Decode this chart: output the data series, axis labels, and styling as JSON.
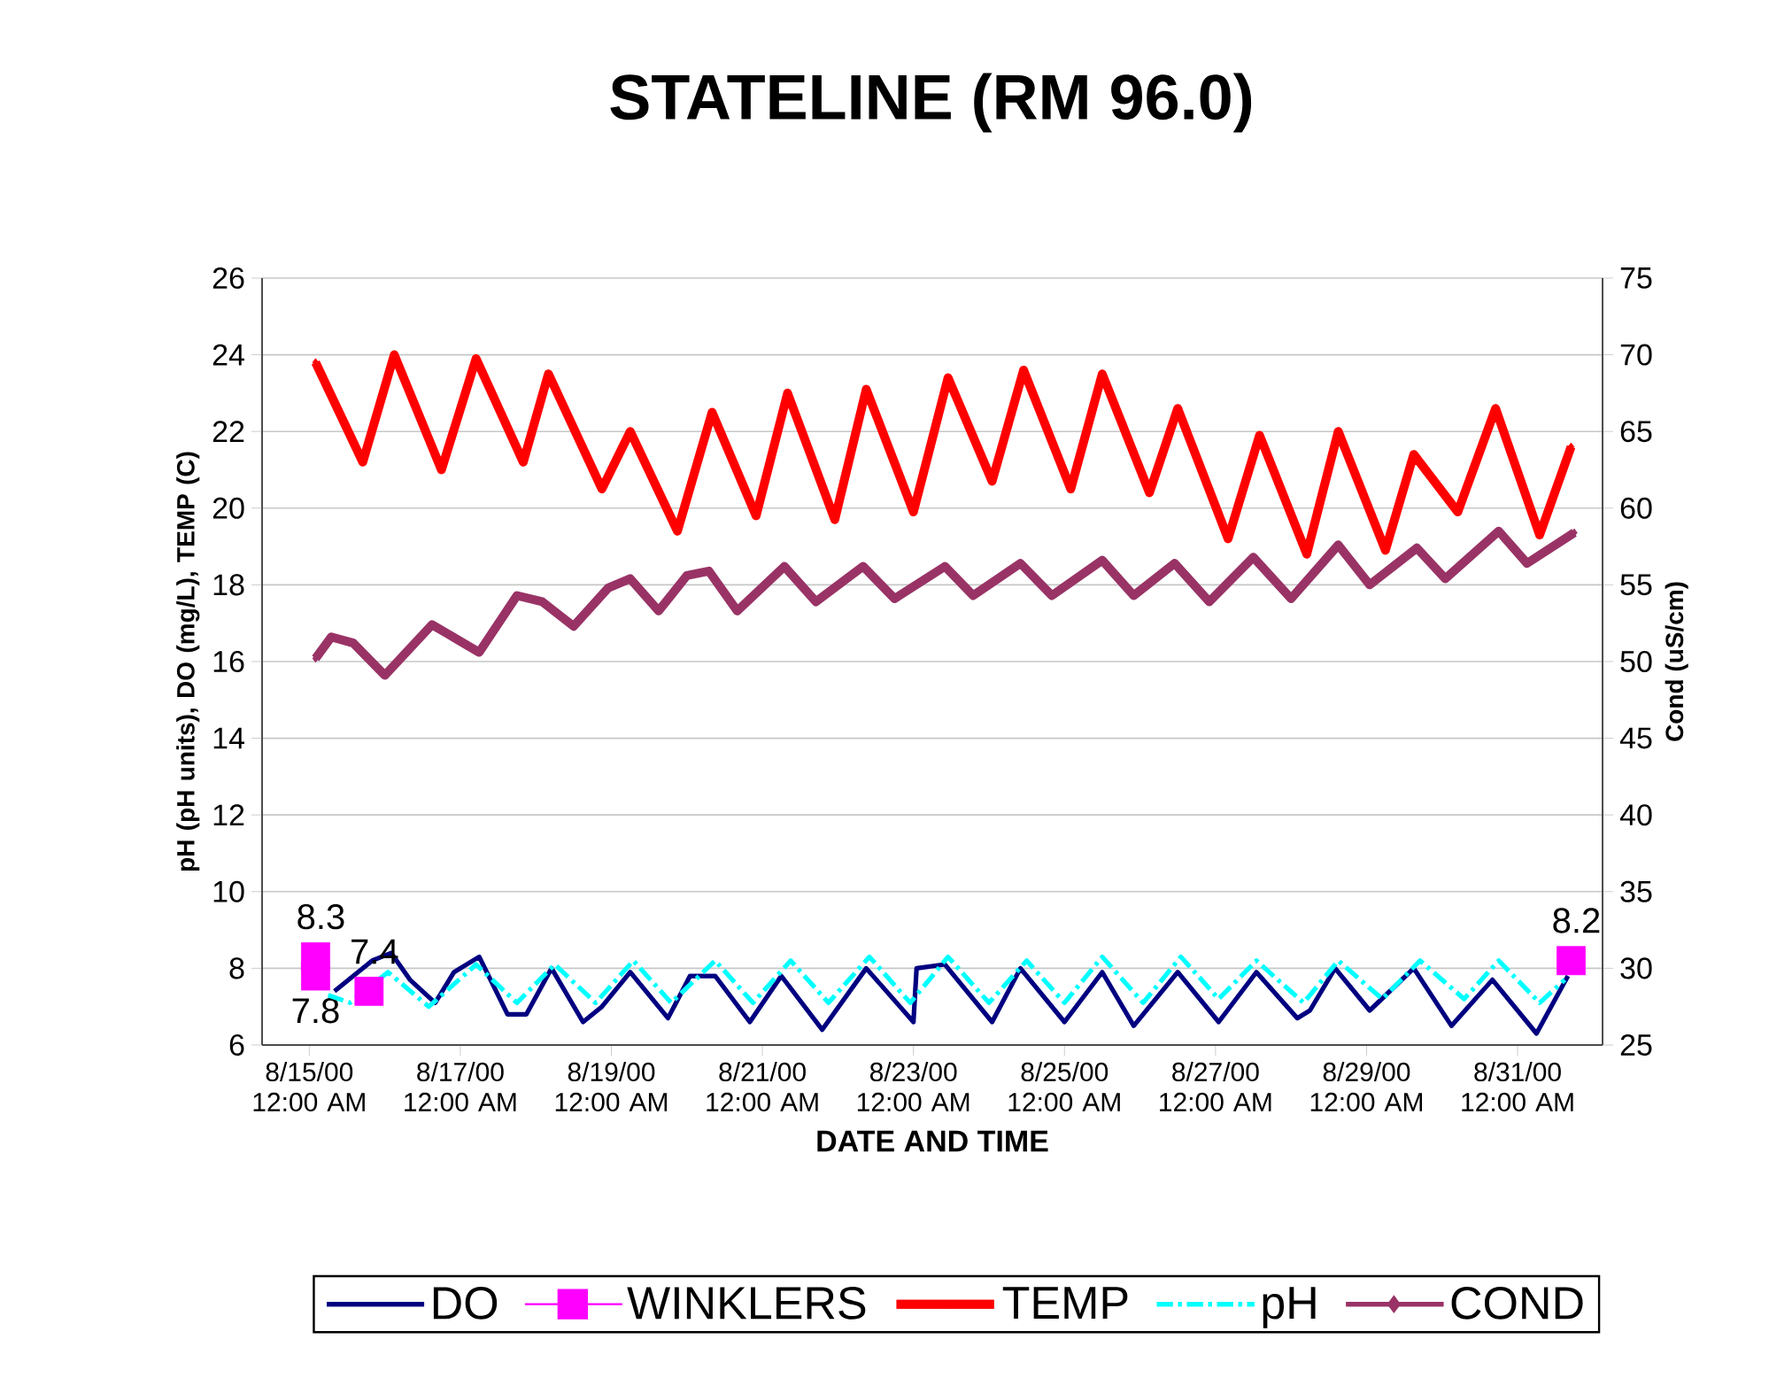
{
  "chart_data": {
    "type": "line",
    "title": "STATELINE (RM 96.0)",
    "xlabel": "DATE AND TIME",
    "ylabel": "pH (pH units), DO (mg/L), TEMP (C)",
    "y2label": "Cond (uS/cm)",
    "xlim": [
      "2000-08-14T09:00",
      "2000-09-01T03:00"
    ],
    "xticks": [
      {
        "value": "2000-08-15T00:00",
        "label": "8/15/00 12:00 AM"
      },
      {
        "value": "2000-08-17T00:00",
        "label": "8/17/00 12:00 AM"
      },
      {
        "value": "2000-08-19T00:00",
        "label": "8/19/00 12:00 AM"
      },
      {
        "value": "2000-08-21T00:00",
        "label": "8/21/00 12:00 AM"
      },
      {
        "value": "2000-08-23T00:00",
        "label": "8/23/00 12:00 AM"
      },
      {
        "value": "2000-08-25T00:00",
        "label": "8/25/00 12:00 AM"
      },
      {
        "value": "2000-08-27T00:00",
        "label": "8/27/00 12:00 AM"
      },
      {
        "value": "2000-08-29T00:00",
        "label": "8/29/00 12:00 AM"
      },
      {
        "value": "2000-08-31T00:00",
        "label": "8/31/00 12:00 AM"
      }
    ],
    "ylim": [
      6,
      26
    ],
    "yticks": [
      6,
      8,
      10,
      12,
      14,
      16,
      18,
      20,
      22,
      24,
      26
    ],
    "y2lim": [
      25,
      75
    ],
    "y2ticks": [
      25,
      30,
      35,
      40,
      45,
      50,
      55,
      60,
      65,
      70,
      75
    ],
    "grid": "y",
    "legend": "bottom",
    "series": [
      {
        "name": "DO",
        "color": "#000080",
        "marker": "none",
        "line_style": "solid",
        "x": [
          "2000-08-15T08:00",
          "2000-08-15T17:00",
          "2000-08-15T20:00",
          "2000-08-16T02:00",
          "2000-08-16T08:00",
          "2000-08-16T16:00",
          "2000-08-16T22:00",
          "2000-08-17T06:00",
          "2000-08-17T15:00",
          "2000-08-17T21:00",
          "2000-08-18T05:00",
          "2000-08-18T15:00",
          "2000-08-18T21:00",
          "2000-08-19T06:00",
          "2000-08-19T18:00",
          "2000-08-20T01:00",
          "2000-08-20T09:00",
          "2000-08-20T20:00",
          "2000-08-21T06:00",
          "2000-08-21T19:00",
          "2000-08-22T09:00",
          "2000-08-23T00:00",
          "2000-08-23T01:00",
          "2000-08-23T10:00",
          "2000-08-24T01:00",
          "2000-08-24T10:00",
          "2000-08-25T00:00",
          "2000-08-25T12:00",
          "2000-08-25T22:00",
          "2000-08-26T12:00",
          "2000-08-27T01:00",
          "2000-08-27T13:00",
          "2000-08-28T02:00",
          "2000-08-28T06:00",
          "2000-08-28T14:00",
          "2000-08-29T01:00",
          "2000-08-29T15:00",
          "2000-08-30T03:00",
          "2000-08-30T16:00",
          "2000-08-31T06:00",
          "2000-08-31T16:00"
        ],
        "values": [
          7.4,
          null,
          8.2,
          8.4,
          7.7,
          7.1,
          7.9,
          8.3,
          6.8,
          6.8,
          8.0,
          6.6,
          7.0,
          7.9,
          6.7,
          7.8,
          7.8,
          6.6,
          7.8,
          6.4,
          8.0,
          6.6,
          8.0,
          8.1,
          6.6,
          8.0,
          6.6,
          7.9,
          6.5,
          7.9,
          6.6,
          7.9,
          6.7,
          6.9,
          8.0,
          6.9,
          8.0,
          6.5,
          7.7,
          6.3,
          7.8
        ]
      },
      {
        "name": "WINKLERS",
        "type": "scatter",
        "color": "#ff00ff",
        "marker": "square",
        "data_labels": true,
        "x": [
          "2000-08-15T02:00",
          "2000-08-15T02:00",
          "2000-08-15T19:00",
          "2000-08-31T17:00"
        ],
        "values": [
          8.3,
          7.8,
          7.4,
          8.2
        ]
      },
      {
        "name": "TEMP",
        "color": "#ff0000",
        "marker": "diamond",
        "line_style": "solid",
        "x": [
          "2000-08-15T02:00",
          "2000-08-15T17:00",
          "2000-08-16T03:00",
          "2000-08-16T18:00",
          "2000-08-17T05:00",
          "2000-08-17T20:00",
          "2000-08-18T04:00",
          "2000-08-18T21:00",
          "2000-08-19T06:00",
          "2000-08-19T21:00",
          "2000-08-20T08:00",
          "2000-08-20T22:00",
          "2000-08-21T08:00",
          "2000-08-21T23:00",
          "2000-08-22T09:00",
          "2000-08-23T00:00",
          "2000-08-23T11:00",
          "2000-08-24T01:00",
          "2000-08-24T11:00",
          "2000-08-25T02:00",
          "2000-08-25T12:00",
          "2000-08-26T03:00",
          "2000-08-26T12:00",
          "2000-08-27T04:00",
          "2000-08-27T14:00",
          "2000-08-28T05:00",
          "2000-08-28T15:00",
          "2000-08-29T06:00",
          "2000-08-29T15:00",
          "2000-08-30T05:00",
          "2000-08-30T17:00",
          "2000-08-31T07:00",
          "2000-08-31T17:00"
        ],
        "values": [
          23.8,
          21.2,
          24.0,
          21.0,
          23.9,
          21.2,
          23.5,
          20.5,
          22.0,
          19.4,
          22.5,
          19.8,
          23.0,
          19.7,
          23.1,
          19.9,
          23.4,
          20.7,
          23.6,
          20.5,
          23.5,
          20.4,
          22.6,
          19.2,
          21.9,
          18.8,
          22.0,
          18.9,
          21.4,
          19.9,
          22.6,
          19.3,
          21.6
        ]
      },
      {
        "name": "pH",
        "color": "#00ffff",
        "marker": "none",
        "line_style": "dashed",
        "x": [
          "2000-08-15T06:00",
          "2000-08-15T13:00",
          "2000-08-16T01:00",
          "2000-08-16T14:00",
          "2000-08-17T05:00",
          "2000-08-17T18:00",
          "2000-08-18T06:00",
          "2000-08-18T19:00",
          "2000-08-19T07:00",
          "2000-08-19T19:00",
          "2000-08-20T09:00",
          "2000-08-20T21:00",
          "2000-08-21T09:00",
          "2000-08-21T21:00",
          "2000-08-22T10:00",
          "2000-08-22T23:00",
          "2000-08-23T11:00",
          "2000-08-24T00:00",
          "2000-08-24T12:00",
          "2000-08-25T00:00",
          "2000-08-25T12:00",
          "2000-08-26T01:00",
          "2000-08-26T13:00",
          "2000-08-27T01:00",
          "2000-08-27T13:00",
          "2000-08-28T04:00",
          "2000-08-28T15:00",
          "2000-08-29T05:00",
          "2000-08-29T17:00",
          "2000-08-30T07:00",
          "2000-08-30T18:00",
          "2000-08-31T07:00",
          "2000-08-31T15:00"
        ],
        "values": [
          7.3,
          7.1,
          7.9,
          7.0,
          8.1,
          7.1,
          8.1,
          7.1,
          8.2,
          7.1,
          8.2,
          7.1,
          8.2,
          7.1,
          8.3,
          7.1,
          8.3,
          7.1,
          8.2,
          7.1,
          8.3,
          7.1,
          8.3,
          7.2,
          8.2,
          7.1,
          8.2,
          7.2,
          8.2,
          7.2,
          8.2,
          7.1,
          7.7
        ]
      },
      {
        "name": "COND",
        "axis": "y2",
        "color": "#993366",
        "marker": "diamond",
        "line_style": "solid",
        "x": [
          "2000-08-15T02:00",
          "2000-08-15T07:00",
          "2000-08-15T14:00",
          "2000-08-16T00:00",
          "2000-08-16T15:00",
          "2000-08-17T06:00",
          "2000-08-17T18:00",
          "2000-08-18T02:00",
          "2000-08-18T12:00",
          "2000-08-18T23:00",
          "2000-08-19T06:00",
          "2000-08-19T15:00",
          "2000-08-20T00:00",
          "2000-08-20T07:00",
          "2000-08-20T16:00",
          "2000-08-21T07:00",
          "2000-08-21T17:00",
          "2000-08-22T08:00",
          "2000-08-22T18:00",
          "2000-08-23T10:00",
          "2000-08-23T19:00",
          "2000-08-24T10:00",
          "2000-08-24T20:00",
          "2000-08-25T12:00",
          "2000-08-25T22:00",
          "2000-08-26T11:00",
          "2000-08-26T22:00",
          "2000-08-27T12:00",
          "2000-08-28T00:00",
          "2000-08-28T15:00",
          "2000-08-29T01:00",
          "2000-08-29T16:00",
          "2000-08-30T01:00",
          "2000-08-30T18:00",
          "2000-08-31T03:00",
          "2000-08-31T18:00"
        ],
        "values": [
          50.2,
          51.6,
          51.2,
          49.1,
          52.4,
          50.6,
          54.3,
          53.9,
          52.3,
          54.8,
          55.4,
          53.3,
          55.6,
          55.9,
          53.3,
          56.2,
          53.9,
          56.2,
          54.1,
          56.2,
          54.3,
          56.4,
          54.3,
          56.6,
          54.3,
          56.4,
          53.9,
          56.8,
          54.1,
          57.6,
          55.0,
          57.4,
          55.4,
          58.5,
          56.4,
          58.4
        ]
      }
    ]
  }
}
